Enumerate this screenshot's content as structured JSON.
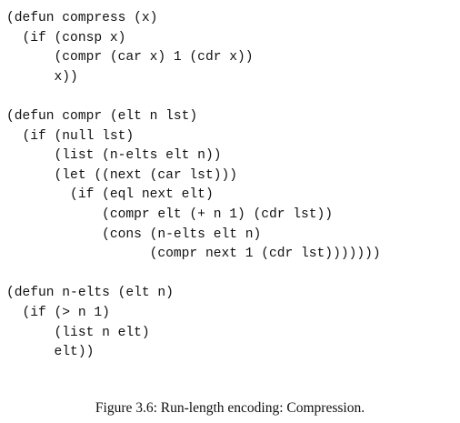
{
  "code": {
    "lines": [
      "(defun compress (x)",
      "  (if (consp x)",
      "      (compr (car x) 1 (cdr x))",
      "      x))",
      "",
      "(defun compr (elt n lst)",
      "  (if (null lst)",
      "      (list (n-elts elt n))",
      "      (let ((next (car lst)))",
      "        (if (eql next elt)",
      "            (compr elt (+ n 1) (cdr lst))",
      "            (cons (n-elts elt n)",
      "                  (compr next 1 (cdr lst)))))))",
      "",
      "(defun n-elts (elt n)",
      "  (if (> n 1)",
      "      (list n elt)",
      "      elt))"
    ]
  },
  "caption": "Figure 3.6: Run-length encoding: Compression."
}
